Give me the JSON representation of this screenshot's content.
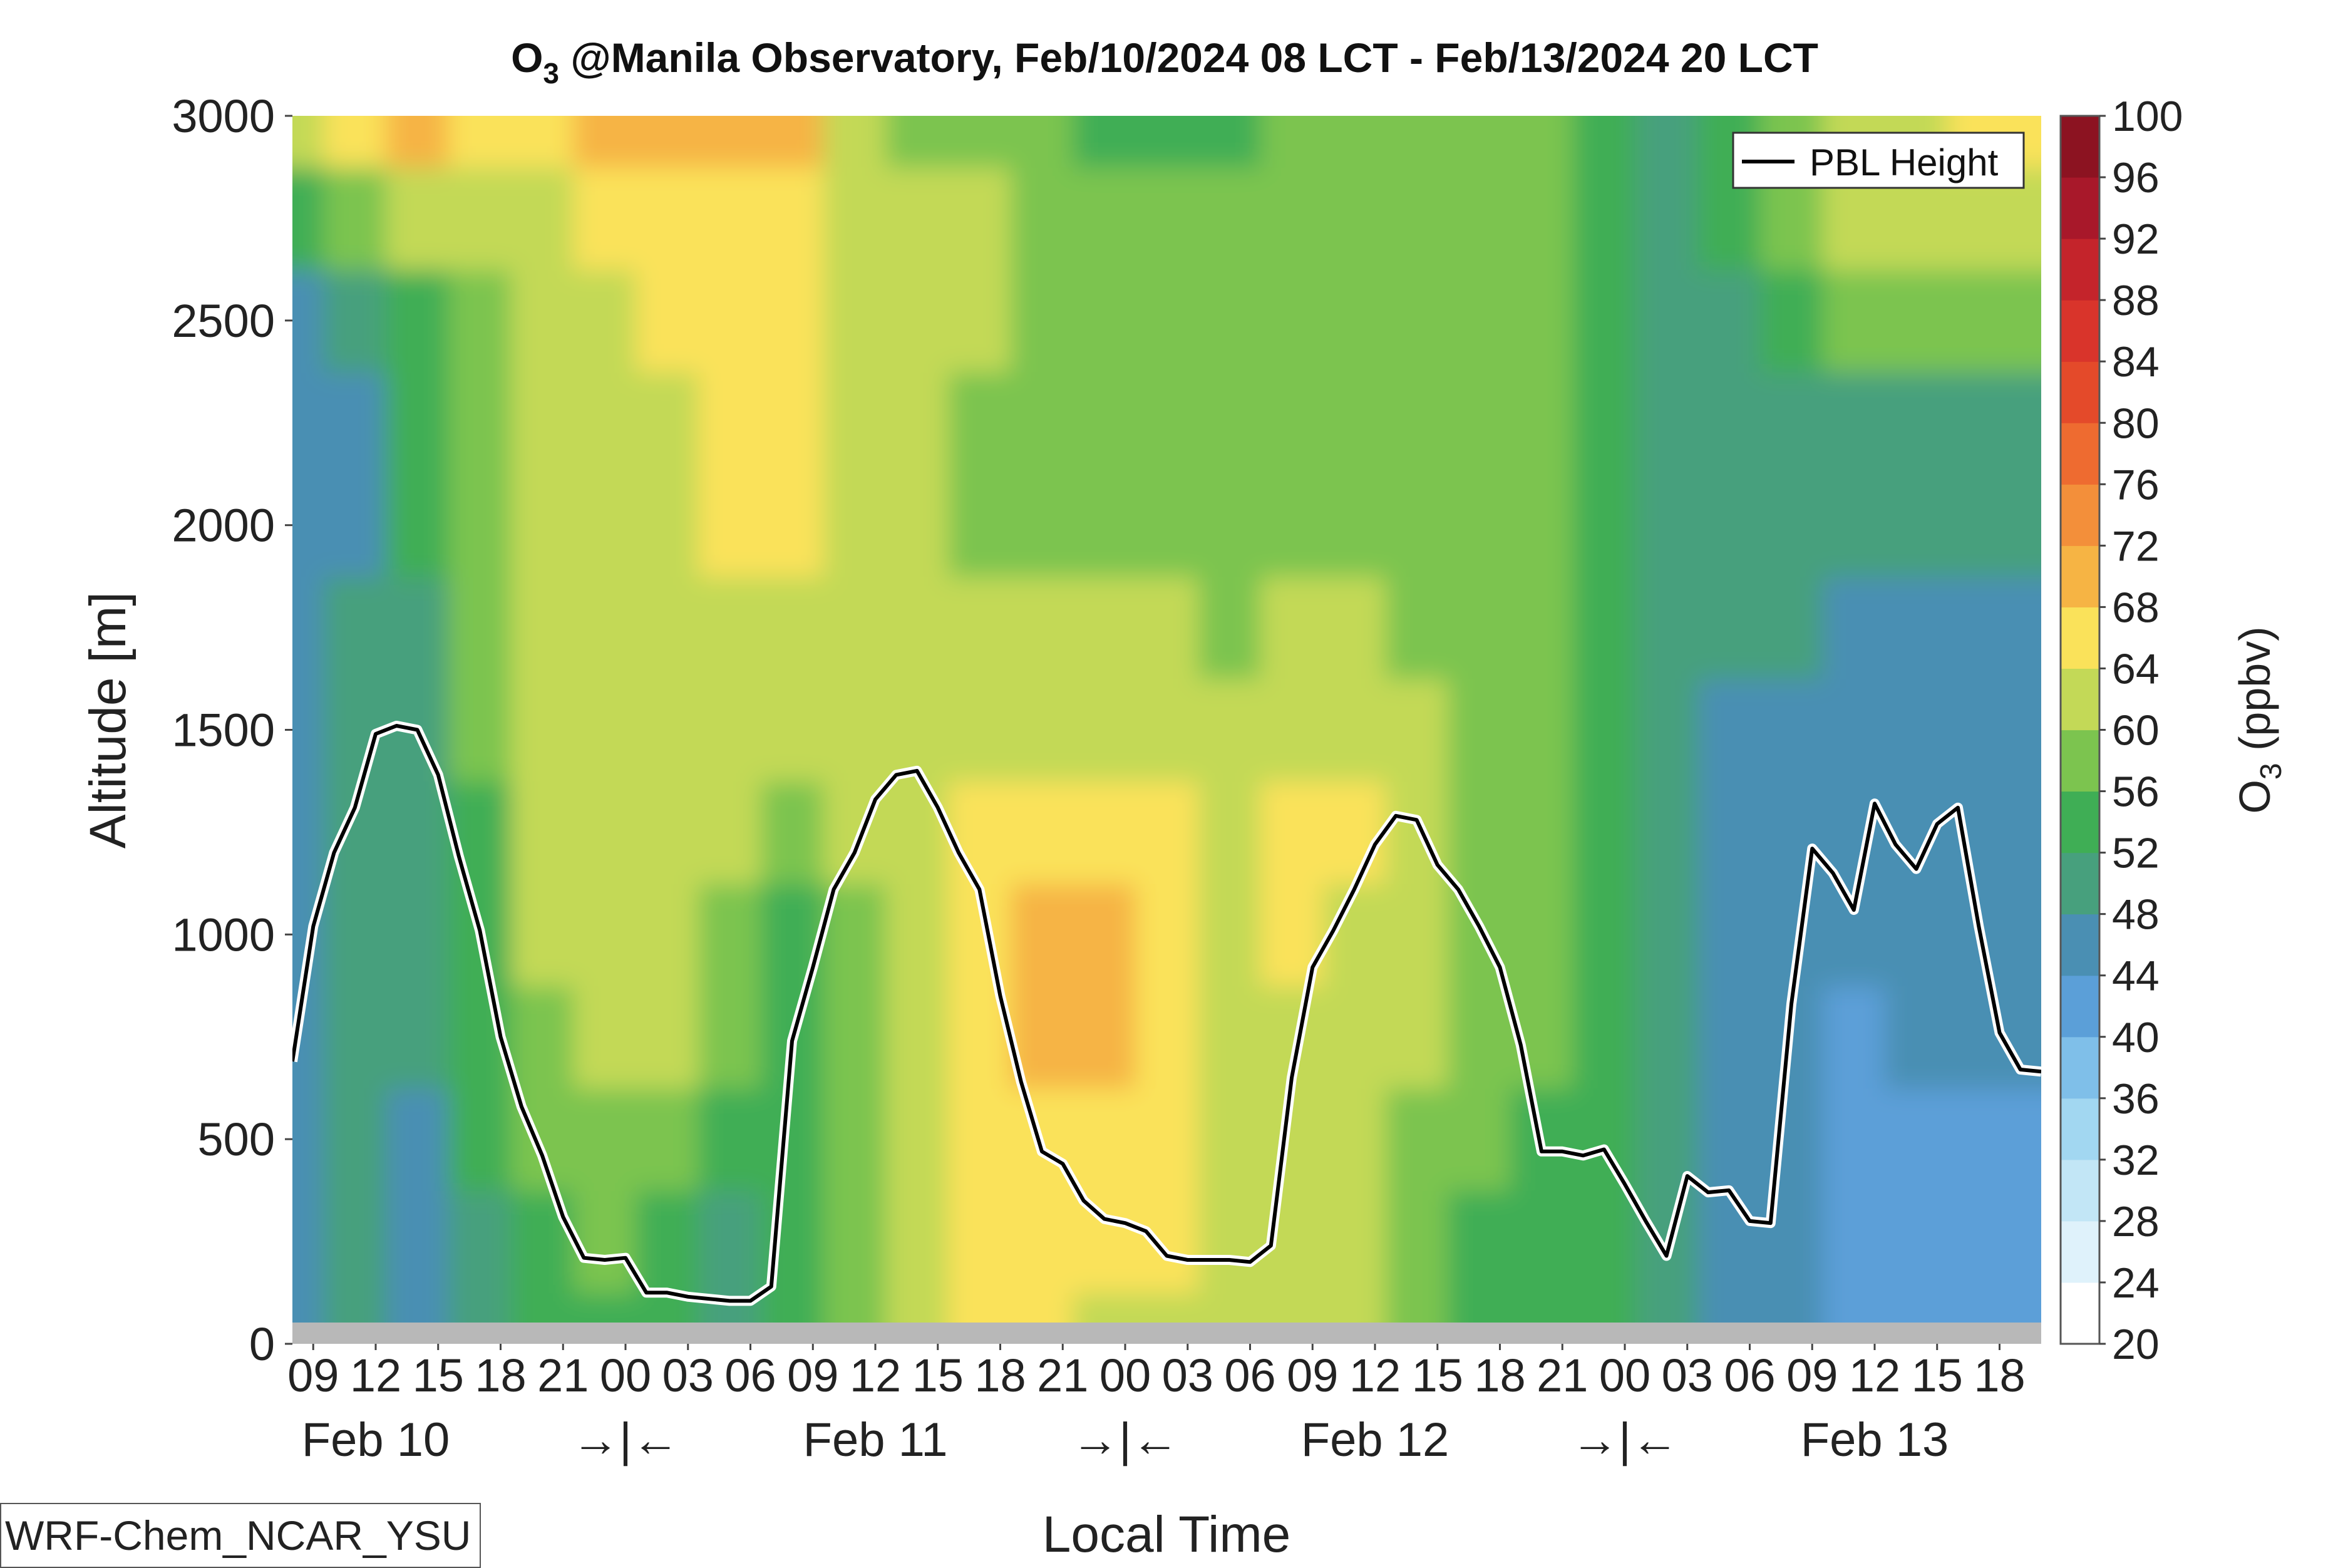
{
  "chart_data": {
    "type": "heatmap",
    "title": "O₃ @Manila Observatory, Feb/10/2024 08 LCT - Feb/13/2024 20 LCT",
    "title_main": "O",
    "title_sub": "3",
    "title_rest": " @Manila Observatory, Feb/10/2024 08 LCT - Feb/13/2024 20 LCT",
    "xlabel": "Local Time",
    "ylabel": "Altitude [m]",
    "x_unit": "hours since Feb 10 00 LCT",
    "xlim": [
      8,
      92
    ],
    "ylim": [
      0,
      3000
    ],
    "y_ticks": [
      0,
      500,
      1000,
      1500,
      2000,
      2500,
      3000
    ],
    "x_tick_hours": [
      9,
      12,
      15,
      18,
      21,
      24,
      27,
      30,
      33,
      36,
      39,
      42,
      45,
      48,
      51,
      54,
      57,
      60,
      63,
      66,
      69,
      72,
      75,
      78,
      81,
      84,
      87,
      90
    ],
    "x_tick_labels": [
      "09",
      "12",
      "15",
      "18",
      "21",
      "00",
      "03",
      "06",
      "09",
      "12",
      "15",
      "18",
      "21",
      "00",
      "03",
      "06",
      "09",
      "12",
      "15",
      "18",
      "21",
      "00",
      "03",
      "06",
      "09",
      "12",
      "15",
      "18"
    ],
    "day_labels": [
      {
        "text": "Feb 10",
        "hour": 12
      },
      {
        "text": "→|←",
        "hour": 24
      },
      {
        "text": "Feb 11",
        "hour": 36
      },
      {
        "text": "→|←",
        "hour": 48
      },
      {
        "text": "Feb 12",
        "hour": 60
      },
      {
        "text": "→|←",
        "hour": 72
      },
      {
        "text": "Feb 13",
        "hour": 84
      }
    ],
    "colorbar": {
      "label_main": "O",
      "label_sub": "3",
      "label_rest": " (ppbv)",
      "ticks": [
        20,
        24,
        28,
        32,
        36,
        40,
        44,
        48,
        52,
        56,
        60,
        64,
        68,
        72,
        76,
        80,
        84,
        88,
        92,
        96,
        100
      ],
      "colors": [
        "#ffffff",
        "#dff2fb",
        "#c2e6f6",
        "#a2d7f1",
        "#7fbfe9",
        "#5b9fd8",
        "#4a8fb3",
        "#47a07d",
        "#3fae55",
        "#7cc44f",
        "#c3d957",
        "#fae25a",
        "#f6b444",
        "#f38f3a",
        "#ee6b30",
        "#e44a2a",
        "#d9342b",
        "#c4242b",
        "#a8182a",
        "#8c1321"
      ]
    },
    "legend": {
      "entries": [
        "PBL Height"
      ],
      "placement": "top-right"
    },
    "model_label": "WRF-Chem_NCAR_YSU",
    "grid": false,
    "pbl_height": {
      "hours": [
        8,
        9,
        10,
        11,
        12,
        13,
        14,
        15,
        16,
        17,
        18,
        19,
        20,
        21,
        22,
        23,
        24,
        25,
        26,
        27,
        28,
        29,
        30,
        31,
        32,
        33,
        34,
        35,
        36,
        37,
        38,
        39,
        40,
        41,
        42,
        43,
        44,
        45,
        46,
        47,
        48,
        49,
        50,
        51,
        52,
        53,
        54,
        55,
        56,
        57,
        58,
        59,
        60,
        61,
        62,
        63,
        64,
        65,
        66,
        67,
        68,
        69,
        70,
        71,
        72,
        73,
        74,
        75,
        76,
        77,
        78,
        79,
        80,
        81,
        82,
        83,
        84,
        85,
        86,
        87,
        88,
        89,
        90,
        91,
        92
      ],
      "values": [
        690,
        1020,
        1200,
        1310,
        1490,
        1510,
        1500,
        1390,
        1190,
        1010,
        750,
        580,
        460,
        310,
        210,
        205,
        210,
        125,
        125,
        115,
        110,
        105,
        105,
        140,
        740,
        920,
        1110,
        1200,
        1330,
        1390,
        1400,
        1310,
        1200,
        1110,
        850,
        640,
        470,
        440,
        350,
        305,
        295,
        275,
        215,
        205,
        205,
        205,
        200,
        240,
        650,
        920,
        1010,
        1110,
        1220,
        1290,
        1280,
        1170,
        1110,
        1020,
        920,
        730,
        470,
        470,
        460,
        475,
        390,
        300,
        215,
        410,
        370,
        375,
        300,
        295,
        830,
        1210,
        1150,
        1060,
        1320,
        1220,
        1160,
        1270,
        1310,
        1020,
        760,
        670,
        665
      ]
    },
    "o3_samples": {
      "hours": [
        8,
        11,
        14,
        17,
        20,
        23,
        26,
        29,
        32,
        35,
        38,
        41,
        44,
        47,
        50,
        53,
        56,
        59,
        62,
        65,
        68,
        71,
        74,
        77,
        80,
        83,
        86,
        89,
        92
      ],
      "altitudes": [
        0,
        250,
        500,
        750,
        1000,
        1250,
        1500,
        1750,
        2000,
        2250,
        2500,
        2750,
        3000
      ],
      "rows": [
        [
          46,
          48,
          46,
          50,
          54,
          55,
          55,
          48,
          54,
          56,
          62,
          64,
          64,
          62,
          62,
          60,
          62,
          62,
          56,
          54,
          54,
          52,
          48,
          44,
          44,
          40,
          40,
          40,
          40
        ],
        [
          46,
          48,
          46,
          50,
          54,
          56,
          55,
          50,
          55,
          57,
          62,
          64,
          64,
          64,
          64,
          60,
          62,
          62,
          58,
          54,
          54,
          52,
          48,
          44,
          44,
          40,
          40,
          42,
          42
        ],
        [
          45,
          48,
          46,
          52,
          56,
          58,
          58,
          52,
          55,
          58,
          62,
          64,
          66,
          64,
          64,
          60,
          63,
          63,
          58,
          56,
          54,
          52,
          48,
          44,
          44,
          42,
          42,
          42,
          42
        ],
        [
          44,
          48,
          48,
          52,
          58,
          60,
          60,
          56,
          55,
          58,
          62,
          64,
          69,
          70,
          66,
          62,
          63,
          63,
          60,
          58,
          56,
          52,
          48,
          44,
          44,
          42,
          44,
          44,
          44
        ],
        [
          44,
          48,
          48,
          54,
          60,
          62,
          60,
          56,
          55,
          58,
          62,
          64,
          70,
          70,
          66,
          62,
          64,
          63,
          60,
          58,
          56,
          52,
          48,
          46,
          46,
          44,
          44,
          44,
          44
        ],
        [
          44,
          48,
          48,
          54,
          60,
          62,
          62,
          60,
          58,
          60,
          62,
          64,
          66,
          66,
          64,
          62,
          64,
          64,
          60,
          58,
          56,
          52,
          50,
          46,
          46,
          44,
          44,
          44,
          44
        ],
        [
          44,
          48,
          50,
          56,
          60,
          62,
          62,
          62,
          60,
          62,
          62,
          62,
          62,
          62,
          62,
          60,
          62,
          60,
          60,
          58,
          56,
          52,
          50,
          46,
          46,
          46,
          46,
          46,
          46
        ],
        [
          44,
          48,
          50,
          56,
          60,
          62,
          62,
          62,
          62,
          62,
          62,
          60,
          60,
          60,
          60,
          58,
          60,
          60,
          58,
          58,
          56,
          52,
          50,
          48,
          48,
          46,
          46,
          46,
          46
        ],
        [
          44,
          46,
          52,
          58,
          60,
          62,
          62,
          64,
          64,
          62,
          60,
          58,
          58,
          58,
          58,
          56,
          58,
          58,
          58,
          56,
          56,
          52,
          50,
          48,
          48,
          48,
          48,
          48,
          48
        ],
        [
          44,
          46,
          52,
          58,
          60,
          62,
          62,
          64,
          66,
          62,
          60,
          58,
          56,
          56,
          56,
          56,
          58,
          58,
          58,
          56,
          56,
          52,
          50,
          48,
          50,
          50,
          50,
          50,
          50
        ],
        [
          44,
          48,
          54,
          58,
          60,
          62,
          64,
          64,
          66,
          62,
          60,
          60,
          56,
          56,
          56,
          56,
          58,
          58,
          58,
          56,
          56,
          52,
          50,
          50,
          52,
          56,
          56,
          56,
          56
        ],
        [
          52,
          56,
          60,
          62,
          62,
          64,
          66,
          66,
          66,
          62,
          60,
          60,
          58,
          56,
          56,
          56,
          58,
          58,
          58,
          56,
          56,
          52,
          50,
          52,
          56,
          60,
          60,
          60,
          62
        ],
        [
          62,
          66,
          68,
          64,
          66,
          68,
          70,
          70,
          70,
          60,
          58,
          58,
          56,
          54,
          52,
          52,
          56,
          56,
          56,
          56,
          56,
          52,
          48,
          54,
          58,
          62,
          62,
          64,
          64
        ]
      ]
    }
  }
}
